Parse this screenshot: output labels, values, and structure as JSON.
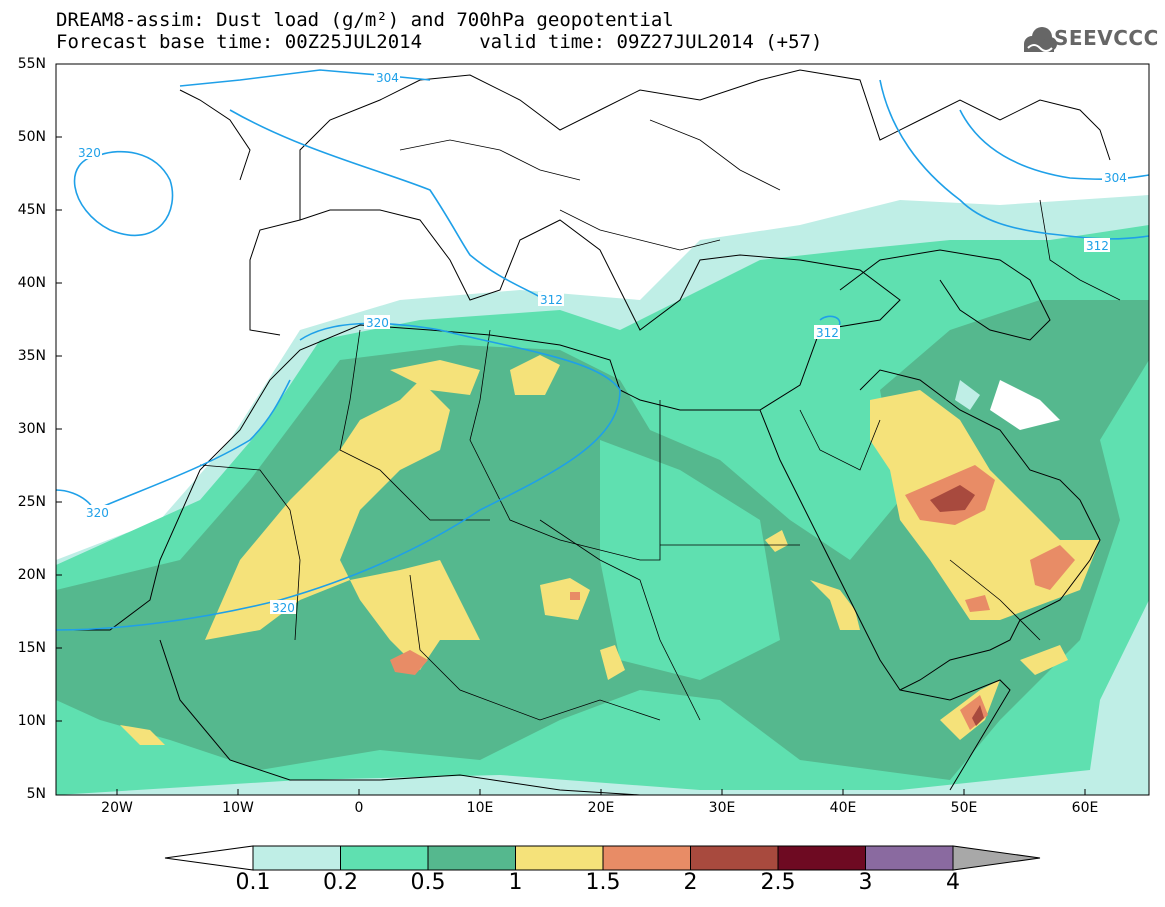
{
  "title": {
    "line1": "DREAM8-assim: Dust load (g/m²) and 700hPa geopotential",
    "line2": "Forecast base time: 00Z25JUL2014     valid time: 09Z27JUL2014 (+57)"
  },
  "logo": {
    "text": "SEEVCCC",
    "icon": "cloud-logo-icon"
  },
  "map": {
    "extent": {
      "lon": [
        -25,
        65
      ],
      "lat": [
        5,
        55
      ]
    },
    "lat_labels": [
      "55N",
      "50N",
      "45N",
      "40N",
      "35N",
      "30N",
      "25N",
      "20N",
      "15N",
      "10N",
      "5N"
    ],
    "lon_labels": [
      "20W",
      "10W",
      "0",
      "10E",
      "20E",
      "30E",
      "40E",
      "50E",
      "60E"
    ],
    "contour_labels": [
      "304",
      "320",
      "312",
      "320",
      "312",
      "320",
      "320",
      "304",
      "312"
    ],
    "contour_color": "#1fa0e8"
  },
  "colorbar": {
    "levels": [
      "0.1",
      "0.2",
      "0.5",
      "1",
      "1.5",
      "2",
      "2.5",
      "3",
      "4"
    ],
    "colors": [
      "#ffffff",
      "#bfeee6",
      "#5fe0b0",
      "#55b88e",
      "#f5e27a",
      "#e88c66",
      "#a84a3e",
      "#6e0a22",
      "#8a6aa0",
      "#a8a8a8"
    ]
  }
}
